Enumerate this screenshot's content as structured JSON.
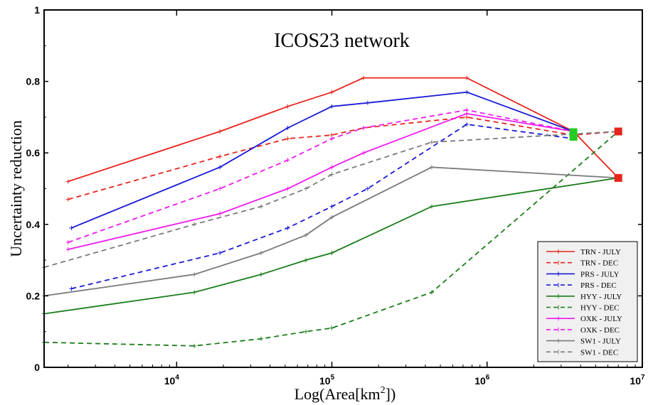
{
  "chart_data": {
    "type": "line",
    "title": "ICOS23 network",
    "xlabel": "Log(Area[km",
    "xlabel_sup": "2",
    "xlabel_end": "])",
    "ylabel": "Uncertainty reduction",
    "xscale": "log",
    "xlim": [
      1400,
      10000000
    ],
    "ylim": [
      0,
      1
    ],
    "x_ticks": [
      {
        "value": 10000,
        "base": "10",
        "exp": "4"
      },
      {
        "value": 100000,
        "base": "10",
        "exp": "5"
      },
      {
        "value": 1000000,
        "base": "10",
        "exp": "6"
      },
      {
        "value": 10000000,
        "base": "10",
        "exp": "7"
      }
    ],
    "y_ticks": [
      {
        "value": 0,
        "label": "0"
      },
      {
        "value": 0.2,
        "label": "0.2"
      },
      {
        "value": 0.4,
        "label": "0.4"
      },
      {
        "value": 0.6,
        "label": "0.6"
      },
      {
        "value": 0.8,
        "label": "0.8"
      },
      {
        "value": 1,
        "label": "1"
      }
    ],
    "grid": false,
    "legend_position": "bottom-right",
    "series": [
      {
        "name": "TRN - JULY",
        "color": "#e8231c",
        "dash": "solid",
        "x": [
          2000,
          19000,
          52000,
          100000,
          160000,
          740000,
          3600000,
          7000000
        ],
        "y": [
          0.52,
          0.66,
          0.73,
          0.77,
          0.81,
          0.81,
          0.66,
          0.53
        ]
      },
      {
        "name": "TRN - DEC",
        "color": "#e8231c",
        "dash": "dashed",
        "x": [
          2000,
          19000,
          52000,
          100000,
          160000,
          740000,
          3600000,
          7000000
        ],
        "y": [
          0.47,
          0.59,
          0.64,
          0.65,
          0.67,
          0.7,
          0.65,
          0.66
        ]
      },
      {
        "name": "PRS - JULY",
        "color": "#1a1ad6",
        "dash": "solid",
        "x": [
          2100,
          19000,
          52000,
          100000,
          170000,
          740000,
          3600000
        ],
        "y": [
          0.39,
          0.56,
          0.67,
          0.73,
          0.74,
          0.77,
          0.66
        ]
      },
      {
        "name": "PRS - DEC",
        "color": "#1a1ad6",
        "dash": "dashed",
        "x": [
          2100,
          19000,
          52000,
          100000,
          170000,
          740000,
          3600000
        ],
        "y": [
          0.22,
          0.32,
          0.39,
          0.45,
          0.5,
          0.68,
          0.64
        ]
      },
      {
        "name": "HYY - JULY",
        "color": "#1a7d1a",
        "dash": "solid",
        "x": [
          1400,
          13000,
          35000,
          68000,
          100000,
          440000,
          7000000
        ],
        "y": [
          0.15,
          0.21,
          0.26,
          0.3,
          0.32,
          0.45,
          0.53
        ]
      },
      {
        "name": "HYY - DEC",
        "color": "#1a7d1a",
        "dash": "dashed",
        "x": [
          1400,
          13000,
          35000,
          68000,
          100000,
          440000,
          7000000
        ],
        "y": [
          0.07,
          0.06,
          0.08,
          0.1,
          0.11,
          0.21,
          0.66
        ]
      },
      {
        "name": "OXK - JULY",
        "color": "#ee1aee",
        "dash": "solid",
        "x": [
          2000,
          19000,
          52000,
          100000,
          160000,
          740000,
          3600000
        ],
        "y": [
          0.33,
          0.43,
          0.5,
          0.56,
          0.6,
          0.71,
          0.66
        ]
      },
      {
        "name": "OXK - DEC",
        "color": "#ee1aee",
        "dash": "dashed",
        "x": [
          2000,
          19000,
          52000,
          100000,
          160000,
          740000,
          3600000
        ],
        "y": [
          0.35,
          0.5,
          0.58,
          0.64,
          0.67,
          0.72,
          0.66
        ]
      },
      {
        "name": "SW1 - JULY",
        "color": "#7a7a7a",
        "dash": "solid",
        "x": [
          1400,
          13000,
          35000,
          68000,
          100000,
          440000,
          7000000
        ],
        "y": [
          0.2,
          0.26,
          0.32,
          0.37,
          0.42,
          0.56,
          0.53
        ]
      },
      {
        "name": "SW1 - DEC",
        "color": "#7a7a7a",
        "dash": "dashed",
        "x": [
          1400,
          13000,
          35000,
          68000,
          100000,
          440000,
          7000000
        ],
        "y": [
          0.28,
          0.4,
          0.45,
          0.5,
          0.54,
          0.63,
          0.66
        ]
      }
    ],
    "markers": [
      {
        "x": 7000000,
        "y": 0.66,
        "color": "#e8231c"
      },
      {
        "x": 7000000,
        "y": 0.53,
        "color": "#e8231c"
      },
      {
        "x": 3600000,
        "y": 0.658,
        "color": "#22cc22"
      },
      {
        "x": 3600000,
        "y": 0.645,
        "color": "#22cc22"
      }
    ]
  }
}
